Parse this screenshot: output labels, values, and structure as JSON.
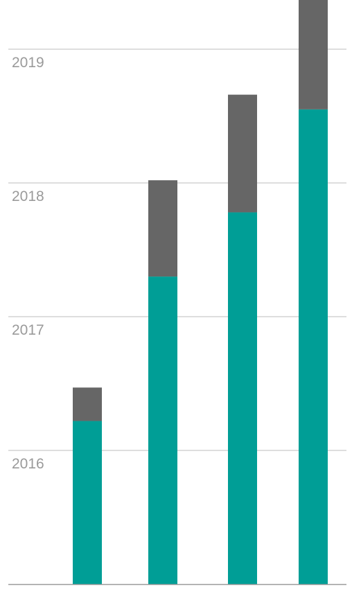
{
  "chart_data": {
    "type": "bar",
    "stacked": true,
    "orientation": "vertical",
    "grid": true,
    "legend": "none",
    "title": "",
    "xlabel": "",
    "ylabel": "",
    "y_tick_labels": [
      "2016",
      "2017",
      "2018",
      "2019"
    ],
    "y_tick_values": [
      1,
      2,
      3,
      4
    ],
    "ylim": [
      0,
      4.4
    ],
    "categories": [
      "",
      "",
      "",
      ""
    ],
    "series": [
      {
        "color": "#009e96",
        "values": [
          1.22,
          2.3,
          2.78,
          3.55
        ]
      },
      {
        "color": "#666666",
        "values": [
          0.25,
          0.72,
          0.88,
          0.83
        ]
      }
    ]
  }
}
